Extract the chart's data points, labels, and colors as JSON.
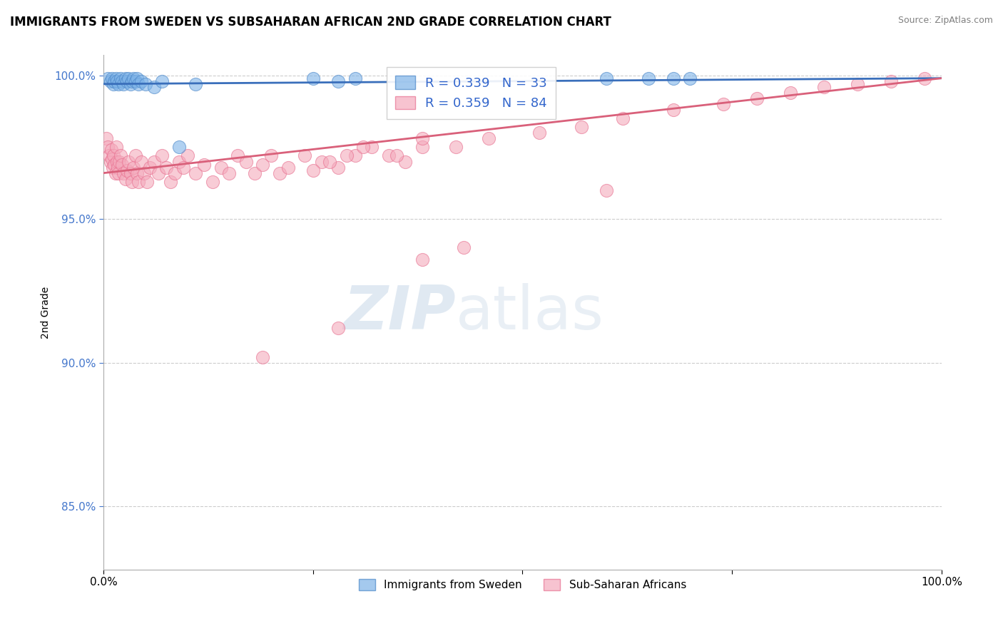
{
  "title": "IMMIGRANTS FROM SWEDEN VS SUBSAHARAN AFRICAN 2ND GRADE CORRELATION CHART",
  "source": "Source: ZipAtlas.com",
  "ylabel": "2nd Grade",
  "xlim": [
    0.0,
    1.0
  ],
  "ylim": [
    0.828,
    1.007
  ],
  "yticks": [
    0.85,
    0.9,
    0.95,
    1.0
  ],
  "ytick_labels": [
    "85.0%",
    "90.0%",
    "95.0%",
    "100.0%"
  ],
  "xticks": [
    0.0,
    0.25,
    0.5,
    0.75,
    1.0
  ],
  "xtick_labels": [
    "0.0%",
    "",
    "",
    "",
    "100.0%"
  ],
  "legend_labels": [
    "Immigrants from Sweden",
    "Sub-Saharan Africans"
  ],
  "blue_color": "#7EB3E8",
  "pink_color": "#F4AABC",
  "blue_edge_color": "#4A86C8",
  "pink_edge_color": "#E87090",
  "blue_line_color": "#3A6FBB",
  "pink_line_color": "#D9607A",
  "legend_text_color": "#3366CC",
  "tick_color": "#4477CC",
  "watermark_zip": "ZIP",
  "watermark_atlas": "atlas",
  "R_blue": "0.339",
  "N_blue": "33",
  "R_pink": "0.359",
  "N_pink": "84",
  "blue_x": [
    0.005,
    0.008,
    0.01,
    0.012,
    0.013,
    0.015,
    0.016,
    0.018,
    0.02,
    0.022,
    0.024,
    0.026,
    0.028,
    0.03,
    0.032,
    0.034,
    0.036,
    0.038,
    0.04,
    0.042,
    0.045,
    0.05,
    0.06,
    0.07,
    0.09,
    0.11,
    0.25,
    0.28,
    0.3,
    0.6,
    0.65,
    0.68,
    0.7
  ],
  "blue_y": [
    0.999,
    0.998,
    0.999,
    0.997,
    0.998,
    0.999,
    0.998,
    0.997,
    0.999,
    0.998,
    0.997,
    0.999,
    0.998,
    0.999,
    0.997,
    0.998,
    0.999,
    0.998,
    0.999,
    0.997,
    0.998,
    0.997,
    0.996,
    0.998,
    0.975,
    0.997,
    0.999,
    0.998,
    0.999,
    0.999,
    0.999,
    0.999,
    0.999
  ],
  "pink_x": [
    0.003,
    0.005,
    0.007,
    0.008,
    0.009,
    0.01,
    0.011,
    0.012,
    0.013,
    0.014,
    0.015,
    0.016,
    0.017,
    0.018,
    0.019,
    0.02,
    0.022,
    0.024,
    0.026,
    0.028,
    0.03,
    0.032,
    0.034,
    0.036,
    0.038,
    0.04,
    0.042,
    0.045,
    0.048,
    0.052,
    0.055,
    0.06,
    0.065,
    0.07,
    0.075,
    0.08,
    0.085,
    0.09,
    0.095,
    0.1,
    0.11,
    0.12,
    0.13,
    0.14,
    0.15,
    0.16,
    0.17,
    0.18,
    0.19,
    0.2,
    0.21,
    0.22,
    0.24,
    0.26,
    0.28,
    0.3,
    0.32,
    0.34,
    0.36,
    0.38,
    0.25,
    0.27,
    0.29,
    0.31,
    0.35,
    0.38,
    0.42,
    0.46,
    0.52,
    0.57,
    0.62,
    0.68,
    0.74,
    0.78,
    0.82,
    0.86,
    0.9,
    0.94,
    0.98,
    0.6,
    0.28,
    0.19,
    0.38,
    0.43
  ],
  "pink_y": [
    0.978,
    0.975,
    0.972,
    0.97,
    0.974,
    0.971,
    0.968,
    0.972,
    0.969,
    0.966,
    0.975,
    0.97,
    0.968,
    0.966,
    0.97,
    0.972,
    0.969,
    0.966,
    0.964,
    0.967,
    0.97,
    0.966,
    0.963,
    0.968,
    0.972,
    0.966,
    0.963,
    0.97,
    0.966,
    0.963,
    0.968,
    0.97,
    0.966,
    0.972,
    0.968,
    0.963,
    0.966,
    0.97,
    0.968,
    0.972,
    0.966,
    0.969,
    0.963,
    0.968,
    0.966,
    0.972,
    0.97,
    0.966,
    0.969,
    0.972,
    0.966,
    0.968,
    0.972,
    0.97,
    0.968,
    0.972,
    0.975,
    0.972,
    0.97,
    0.975,
    0.967,
    0.97,
    0.972,
    0.975,
    0.972,
    0.978,
    0.975,
    0.978,
    0.98,
    0.982,
    0.985,
    0.988,
    0.99,
    0.992,
    0.994,
    0.996,
    0.997,
    0.998,
    0.999,
    0.96,
    0.912,
    0.902,
    0.936,
    0.94
  ]
}
